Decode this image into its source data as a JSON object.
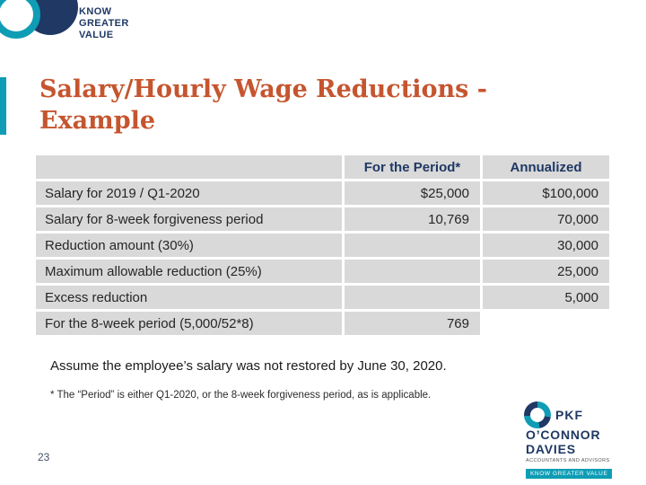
{
  "slide": {
    "title_line1": "Salary/Hourly Wage Reductions -",
    "title_line2": "Example",
    "page_number": "23"
  },
  "top_logo": {
    "line1": "KNOW",
    "line2": "GREATER",
    "line3": "VALUE"
  },
  "table": {
    "headers": [
      "",
      "For the Period*",
      "Annualized"
    ],
    "rows": [
      {
        "label": "Salary for 2019 / Q1-2020",
        "period": "$25,000",
        "annualized": "$100,000"
      },
      {
        "label": "Salary for 8-week forgiveness period",
        "period": "10,769",
        "annualized": "70,000"
      },
      {
        "label": "Reduction amount (30%)",
        "period": "",
        "annualized": "30,000"
      },
      {
        "label": "Maximum allowable reduction (25%)",
        "period": "",
        "annualized": "25,000"
      },
      {
        "label": "Excess reduction",
        "period": "",
        "annualized": "5,000"
      },
      {
        "label": "For the 8-week period (5,000/52*8)",
        "period": "769",
        "annualized": ""
      }
    ]
  },
  "notes": {
    "assumption": "Assume the employee’s salary was not restored by June 30, 2020.",
    "footnote": "* The “Period” is either Q1-2020, or the 8-week forgiveness period, as is applicable."
  },
  "footer_logo": {
    "abbr": "PKF",
    "name_line1": "O’CONNOR",
    "name_line2": "DAVIES",
    "tagline": "ACCOUNTANTS AND ADVISORS",
    "banner": "KNOW GREATER VALUE"
  },
  "colors": {
    "navy": "#1f3864",
    "teal": "#0e9db5",
    "title_orange": "#c5552f",
    "table_gray": "#d9d9d9"
  }
}
